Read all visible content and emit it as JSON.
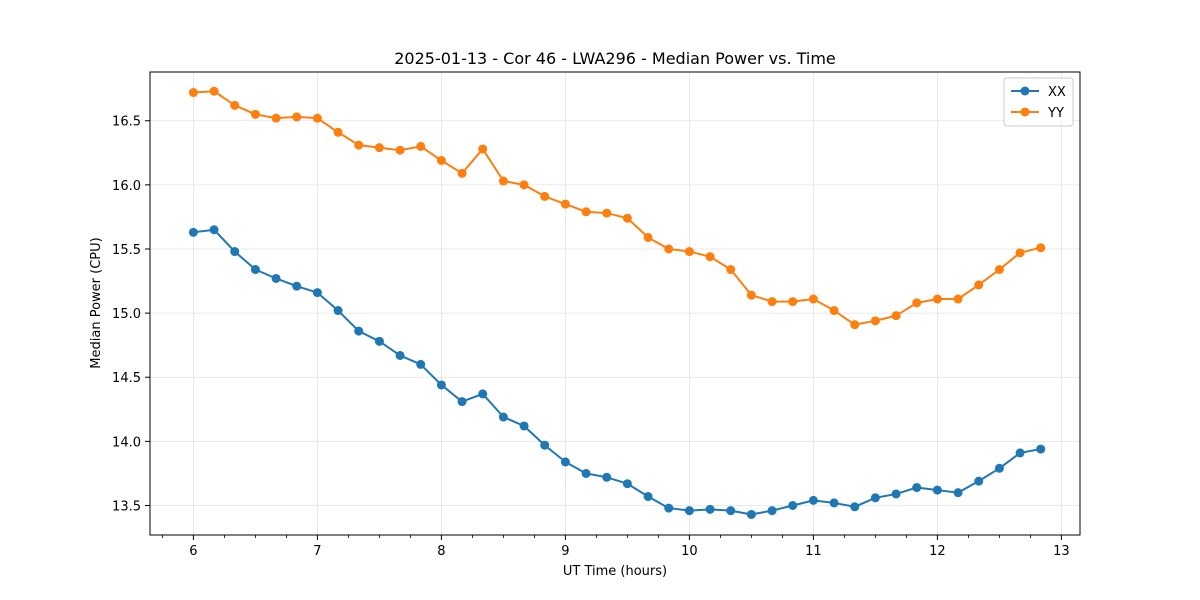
{
  "chart_data": {
    "type": "line",
    "title": "2025-01-13 - Cor 46 - LWA296 - Median Power vs. Time",
    "xlabel": "UT Time (hours)",
    "ylabel": "Median Power (CPU)",
    "xlim": [
      5.65,
      13.15
    ],
    "ylim": [
      13.27,
      16.88
    ],
    "xticks": [
      6,
      7,
      8,
      9,
      10,
      11,
      12,
      13
    ],
    "xtick_labels": [
      "6",
      "7",
      "8",
      "9",
      "10",
      "11",
      "12",
      "13"
    ],
    "xminor_step": 0.25,
    "yticks": [
      13.5,
      14.0,
      14.5,
      15.0,
      15.5,
      16.0,
      16.5
    ],
    "ytick_labels": [
      "13.5",
      "14.0",
      "14.5",
      "15.0",
      "15.5",
      "16.0",
      "16.5"
    ],
    "grid": true,
    "legend_position": "top-right",
    "x": [
      6.0,
      6.1667,
      6.3333,
      6.5,
      6.6667,
      6.8333,
      7.0,
      7.1667,
      7.3333,
      7.5,
      7.6667,
      7.8333,
      8.0,
      8.1667,
      8.3333,
      8.5,
      8.6667,
      8.8333,
      9.0,
      9.1667,
      9.3333,
      9.5,
      9.6667,
      9.8333,
      10.0,
      10.1667,
      10.3333,
      10.5,
      10.6667,
      10.8333,
      11.0,
      11.1667,
      11.3333,
      11.5,
      11.6667,
      11.8333,
      12.0,
      12.1667,
      12.3333,
      12.5,
      12.6667,
      12.8333
    ],
    "series": [
      {
        "name": "XX",
        "color": "#1f77b4",
        "values": [
          15.63,
          15.65,
          15.48,
          15.34,
          15.27,
          15.21,
          15.16,
          15.02,
          14.86,
          14.78,
          14.67,
          14.6,
          14.44,
          14.31,
          14.37,
          14.19,
          14.12,
          13.97,
          13.84,
          13.75,
          13.72,
          13.67,
          13.57,
          13.48,
          13.46,
          13.47,
          13.46,
          13.43,
          13.46,
          13.5,
          13.54,
          13.52,
          13.49,
          13.56,
          13.59,
          13.64,
          13.62,
          13.6,
          13.69,
          13.79,
          13.91,
          13.94
        ]
      },
      {
        "name": "YY",
        "color": "#ff7f0e",
        "values": [
          16.72,
          16.73,
          16.62,
          16.55,
          16.52,
          16.53,
          16.52,
          16.41,
          16.31,
          16.29,
          16.27,
          16.3,
          16.19,
          16.09,
          16.28,
          16.03,
          16.0,
          15.91,
          15.85,
          15.79,
          15.78,
          15.74,
          15.59,
          15.5,
          15.48,
          15.44,
          15.34,
          15.14,
          15.09,
          15.09,
          15.11,
          15.02,
          14.91,
          14.94,
          14.98,
          15.08,
          15.11,
          15.11,
          15.22,
          15.34,
          15.47,
          15.51
        ]
      }
    ]
  }
}
